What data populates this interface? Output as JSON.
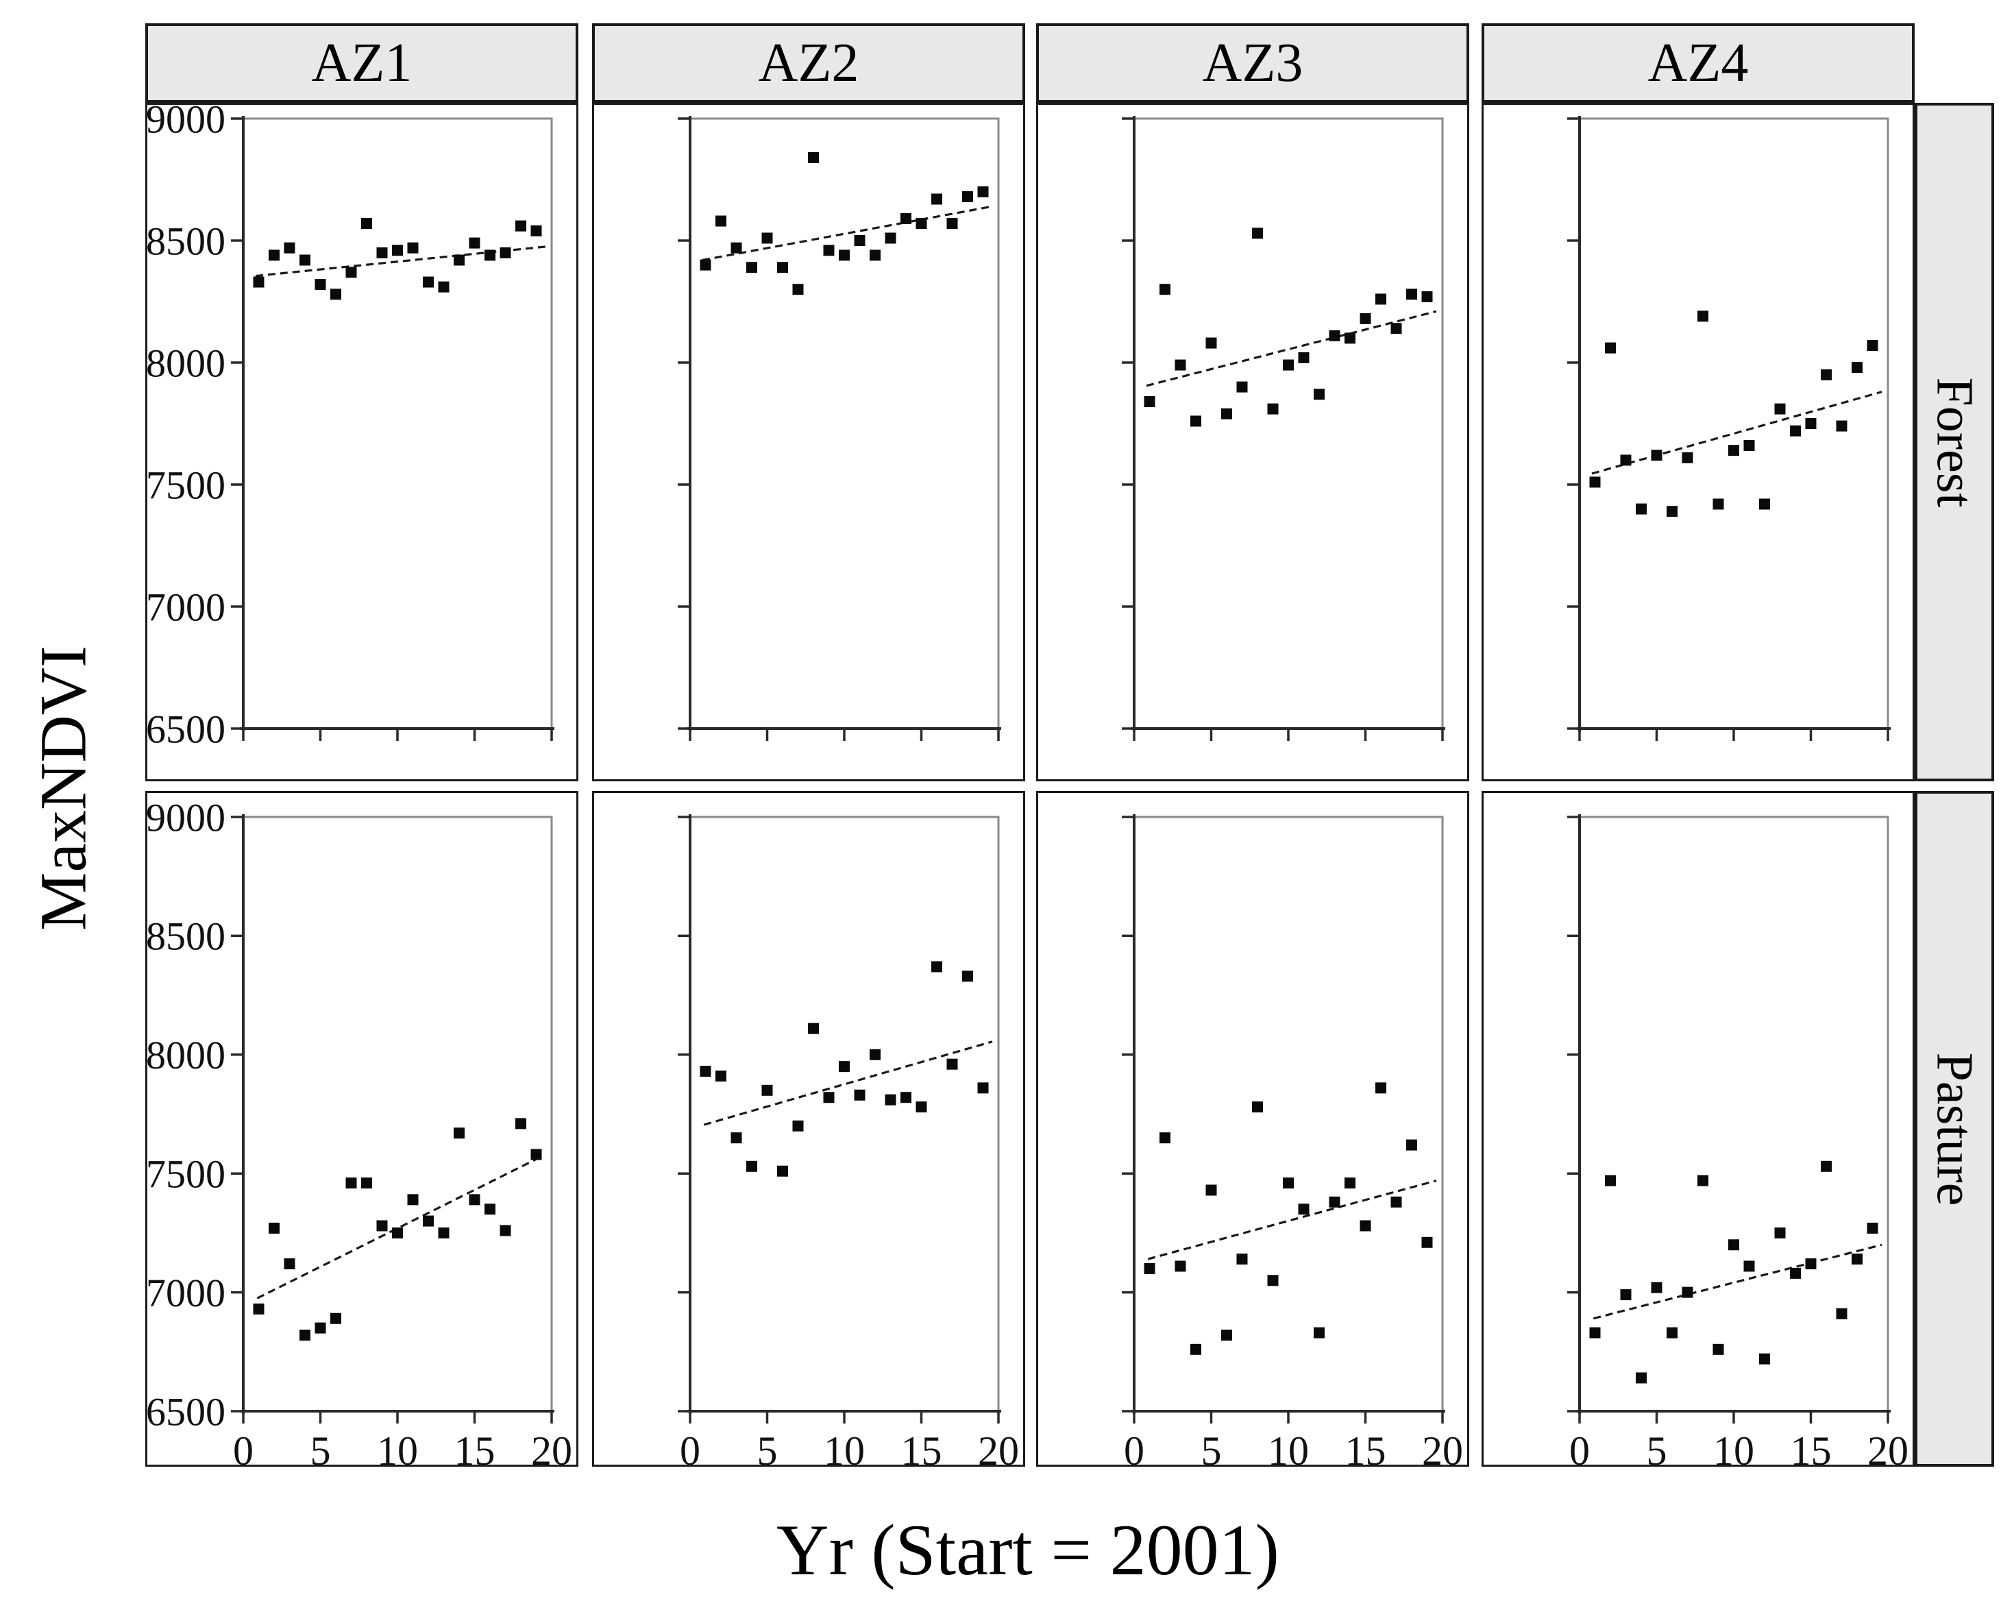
{
  "figure": {
    "y_axis_title": "MaxNDVI",
    "x_axis_title": "Yr (Start = 2001)",
    "col_headers": [
      "AZ1",
      "AZ2",
      "AZ3",
      "AZ4"
    ],
    "row_headers": [
      "Forest",
      "Pasture"
    ],
    "colors": {
      "strip_bg": "#e8e8e8",
      "box_border": "#1a1a1a",
      "plot_frame": "#8a8a8a",
      "axis_line": "#2a2a2a",
      "point": "#0a0a0a",
      "trend": "#1a1a1a",
      "text": "#111111"
    }
  },
  "chart_data": {
    "type": "scatter",
    "title": "",
    "xlabel": "Yr (Start = 2001)",
    "ylabel": "MaxNDVI",
    "xlim": [
      0,
      20
    ],
    "ylim": [
      6500,
      9000
    ],
    "x_ticks": [
      0,
      5,
      10,
      15,
      20
    ],
    "y_ticks": [
      9000,
      8500,
      8000,
      7500,
      7000,
      6500
    ],
    "grid": false,
    "legend": "none",
    "marker": "black-square",
    "trend_style": "dashed-linear-fit",
    "x": [
      1,
      2,
      3,
      4,
      5,
      6,
      7,
      8,
      9,
      10,
      11,
      12,
      13,
      14,
      15,
      16,
      17,
      18,
      19
    ],
    "panels": [
      {
        "row": "Forest",
        "col": "AZ1",
        "values": [
          8330,
          8440,
          8470,
          8420,
          8320,
          8280,
          8370,
          8570,
          8450,
          8460,
          8470,
          8330,
          8310,
          8420,
          8490,
          8440,
          8450,
          8560,
          8540
        ],
        "trend": {
          "x1": 0.8,
          "y1": 8355,
          "x2": 19.6,
          "y2": 8475
        }
      },
      {
        "row": "Forest",
        "col": "AZ2",
        "values": [
          8400,
          8580,
          8470,
          8390,
          8510,
          8390,
          8300,
          8840,
          8460,
          8440,
          8500,
          8440,
          8510,
          8590,
          8570,
          8670,
          8570,
          8680,
          8700
        ],
        "trend": {
          "x1": 0.8,
          "y1": 8420,
          "x2": 19.6,
          "y2": 8640
        }
      },
      {
        "row": "Forest",
        "col": "AZ3",
        "values": [
          7840,
          8300,
          7990,
          7760,
          8080,
          7790,
          7900,
          8530,
          7810,
          7990,
          8020,
          7870,
          8110,
          8100,
          8180,
          8260,
          8140,
          8280,
          8270
        ],
        "trend": {
          "x1": 0.8,
          "y1": 7905,
          "x2": 19.6,
          "y2": 8210
        }
      },
      {
        "row": "Forest",
        "col": "AZ4",
        "values": [
          7510,
          8060,
          7600,
          7400,
          7620,
          7390,
          7610,
          8190,
          7420,
          7640,
          7660,
          7420,
          7810,
          7720,
          7750,
          7950,
          7740,
          7980,
          8070
        ],
        "trend": {
          "x1": 0.8,
          "y1": 7545,
          "x2": 19.6,
          "y2": 7880
        }
      },
      {
        "row": "Pasture",
        "col": "AZ1",
        "values": [
          6930,
          7270,
          7120,
          6820,
          6850,
          6890,
          7460,
          7460,
          7280,
          7250,
          7390,
          7300,
          7250,
          7670,
          7390,
          7350,
          7260,
          7710,
          7580
        ],
        "trend": {
          "x1": 0.9,
          "y1": 6975,
          "x2": 19.3,
          "y2": 7570
        }
      },
      {
        "row": "Pasture",
        "col": "AZ2",
        "values": [
          7930,
          7910,
          7650,
          7530,
          7850,
          7510,
          7700,
          8110,
          7820,
          7950,
          7830,
          8000,
          7810,
          7820,
          7780,
          8370,
          7960,
          8330,
          7860
        ],
        "trend": {
          "x1": 0.9,
          "y1": 7705,
          "x2": 19.6,
          "y2": 8055
        }
      },
      {
        "row": "Pasture",
        "col": "AZ3",
        "values": [
          7100,
          7650,
          7110,
          6760,
          7430,
          6820,
          7140,
          7780,
          7050,
          7460,
          7350,
          6830,
          7380,
          7460,
          7280,
          7860,
          7380,
          7620,
          7210
        ],
        "trend": {
          "x1": 0.9,
          "y1": 7140,
          "x2": 19.6,
          "y2": 7470
        }
      },
      {
        "row": "Pasture",
        "col": "AZ4",
        "values": [
          6830,
          7470,
          6990,
          6640,
          7020,
          6830,
          7000,
          7470,
          6760,
          7200,
          7110,
          6720,
          7250,
          7080,
          7120,
          7530,
          6910,
          7140,
          7270
        ],
        "trend": {
          "x1": 0.9,
          "y1": 6890,
          "x2": 19.6,
          "y2": 7200
        }
      }
    ]
  }
}
